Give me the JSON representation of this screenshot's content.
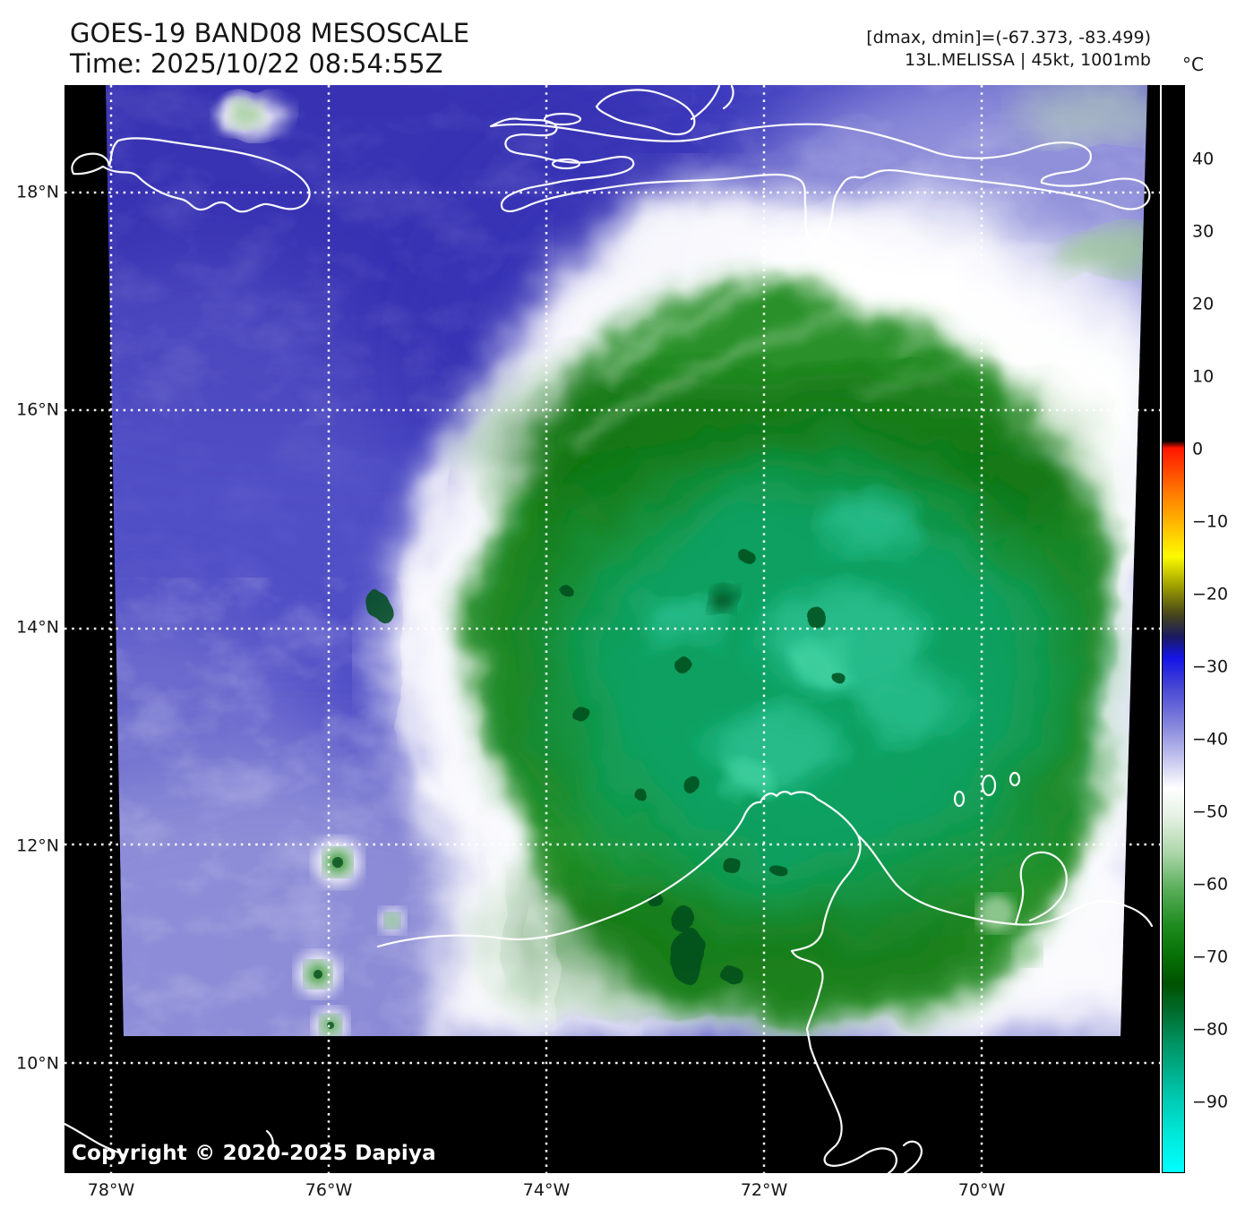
{
  "header": {
    "title": "GOES-19 BAND08 MESOSCALE",
    "time_line": "Time: 2025/10/22 08:54:55Z",
    "range_line": "[dmax, dmin]=(-67.373, -83.499)",
    "storm_line": "13L.MELISSA | 45kt, 1001mb"
  },
  "map": {
    "copyright": "Copyright © 2020-2025 Dapiya",
    "lat_labels": [
      "18°N",
      "16°N",
      "14°N",
      "12°N",
      "10°N"
    ],
    "lon_labels": [
      "78°W",
      "76°W",
      "74°W",
      "72°W",
      "70°W"
    ]
  },
  "colorbar": {
    "unit": "°C",
    "tick_labels": [
      "40",
      "30",
      "20",
      "10",
      "0",
      "−10",
      "−20",
      "−30",
      "−40",
      "−50",
      "−60",
      "−70",
      "−80",
      "−90"
    ],
    "tick_values": [
      40,
      30,
      20,
      10,
      0,
      -10,
      -20,
      -30,
      -40,
      -50,
      -60,
      -70,
      -80,
      -90
    ],
    "domain": [
      50,
      -100
    ],
    "stops": [
      {
        "v": 50,
        "c": "#000000"
      },
      {
        "v": 1,
        "c": "#000000"
      },
      {
        "v": 0,
        "c": "#ff1500"
      },
      {
        "v": -6,
        "c": "#ff7700"
      },
      {
        "v": -11,
        "c": "#ffc000"
      },
      {
        "v": -15,
        "c": "#fbfb00"
      },
      {
        "v": -19,
        "c": "#a0a000"
      },
      {
        "v": -23,
        "c": "#45451a"
      },
      {
        "v": -26,
        "c": "#1b1b60"
      },
      {
        "v": -29,
        "c": "#1414e8"
      },
      {
        "v": -33,
        "c": "#4646d4"
      },
      {
        "v": -38,
        "c": "#8282dc"
      },
      {
        "v": -43,
        "c": "#c6c6ee"
      },
      {
        "v": -47,
        "c": "#ffffff"
      },
      {
        "v": -51,
        "c": "#e4f1e2"
      },
      {
        "v": -56,
        "c": "#abd5a9"
      },
      {
        "v": -61,
        "c": "#58ad58"
      },
      {
        "v": -66,
        "c": "#1e8b1e"
      },
      {
        "v": -70,
        "c": "#077207"
      },
      {
        "v": -74,
        "c": "#005200"
      },
      {
        "v": -78,
        "c": "#006e30"
      },
      {
        "v": -82,
        "c": "#009260"
      },
      {
        "v": -86,
        "c": "#00ae8b"
      },
      {
        "v": -90,
        "c": "#00cbb4"
      },
      {
        "v": -95,
        "c": "#00e9db"
      },
      {
        "v": -100,
        "c": "#00ffff"
      }
    ]
  },
  "palette": {
    "deep_blue": "#413fc0",
    "dark_blue": "#342fae",
    "periwinkle": "#9494dc",
    "cloud_white": "#ffffff",
    "storm_green": "#2a9129",
    "storm_dark": "#0c6e10",
    "storm_core": "#0da163",
    "storm_teal": "#2cc091",
    "cold_spot": "#064d1d",
    "pale_green": "#bcd9b4",
    "land": "#ffffff",
    "grid": "#ffffff",
    "frame_bg": "#000000"
  }
}
